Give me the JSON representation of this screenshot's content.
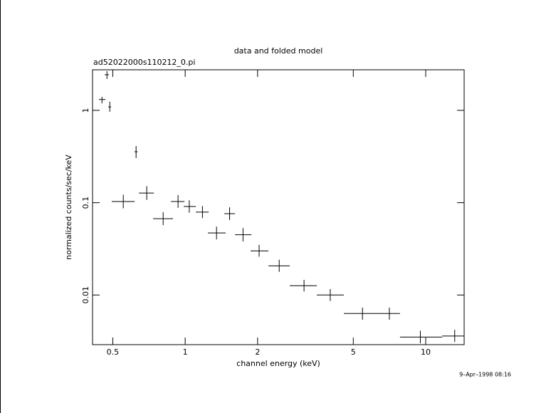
{
  "chart_data": {
    "type": "scatter",
    "title": "data and folded model",
    "subtitle": "ad52022000s110212_0.pi",
    "x_label": "channel energy (keV)",
    "y_label": "normalized counts/sec/keV",
    "timestamp": "9–Apr–1998 08:16",
    "xscale": "log",
    "yscale": "log",
    "color": "#000000",
    "xlim": [
      0.412,
      14.45
    ],
    "ylim": [
      0.0029,
      2.75
    ],
    "xticks": [
      0.5,
      1,
      2,
      5,
      10
    ],
    "yticks": [
      0.01,
      0.1,
      1
    ],
    "x": [
      0.451,
      0.473,
      0.486,
      0.625,
      0.553,
      0.692,
      0.81,
      0.934,
      1.04,
      1.18,
      1.35,
      1.53,
      1.74,
      2.03,
      2.46,
      3.12,
      4.01,
      5.46,
      7.06,
      9.5,
      13.2
    ],
    "xlow": [
      0.438,
      0.463,
      0.479,
      0.616,
      0.495,
      0.642,
      0.736,
      0.873,
      0.986,
      1.108,
      1.243,
      1.455,
      1.611,
      1.871,
      2.219,
      2.722,
      3.526,
      4.571,
      6.468,
      7.818,
      11.71
    ],
    "xhigh": [
      0.466,
      0.482,
      0.492,
      0.634,
      0.617,
      0.741,
      0.89,
      0.993,
      1.108,
      1.252,
      1.474,
      1.611,
      1.885,
      2.219,
      2.722,
      3.526,
      4.571,
      6.468,
      7.818,
      11.71,
      14.45
    ],
    "values": [
      1.31,
      2.43,
      1.09,
      0.356,
      0.103,
      0.127,
      0.067,
      0.103,
      0.091,
      0.079,
      0.047,
      0.076,
      0.045,
      0.03,
      0.0207,
      0.0126,
      0.01,
      0.0063,
      0.0063,
      0.0035,
      0.0036
    ],
    "ylow": [
      1.19,
      2.19,
      0.965,
      0.304,
      0.087,
      0.107,
      0.057,
      0.088,
      0.078,
      0.068,
      0.04,
      0.065,
      0.038,
      0.026,
      0.0178,
      0.0109,
      0.0086,
      0.0054,
      0.0054,
      0.003,
      0.0031
    ],
    "yhigh": [
      1.4,
      2.66,
      1.24,
      0.411,
      0.122,
      0.151,
      0.079,
      0.121,
      0.106,
      0.092,
      0.055,
      0.089,
      0.053,
      0.035,
      0.0241,
      0.0146,
      0.0116,
      0.0073,
      0.0073,
      0.0041,
      0.0042
    ]
  }
}
